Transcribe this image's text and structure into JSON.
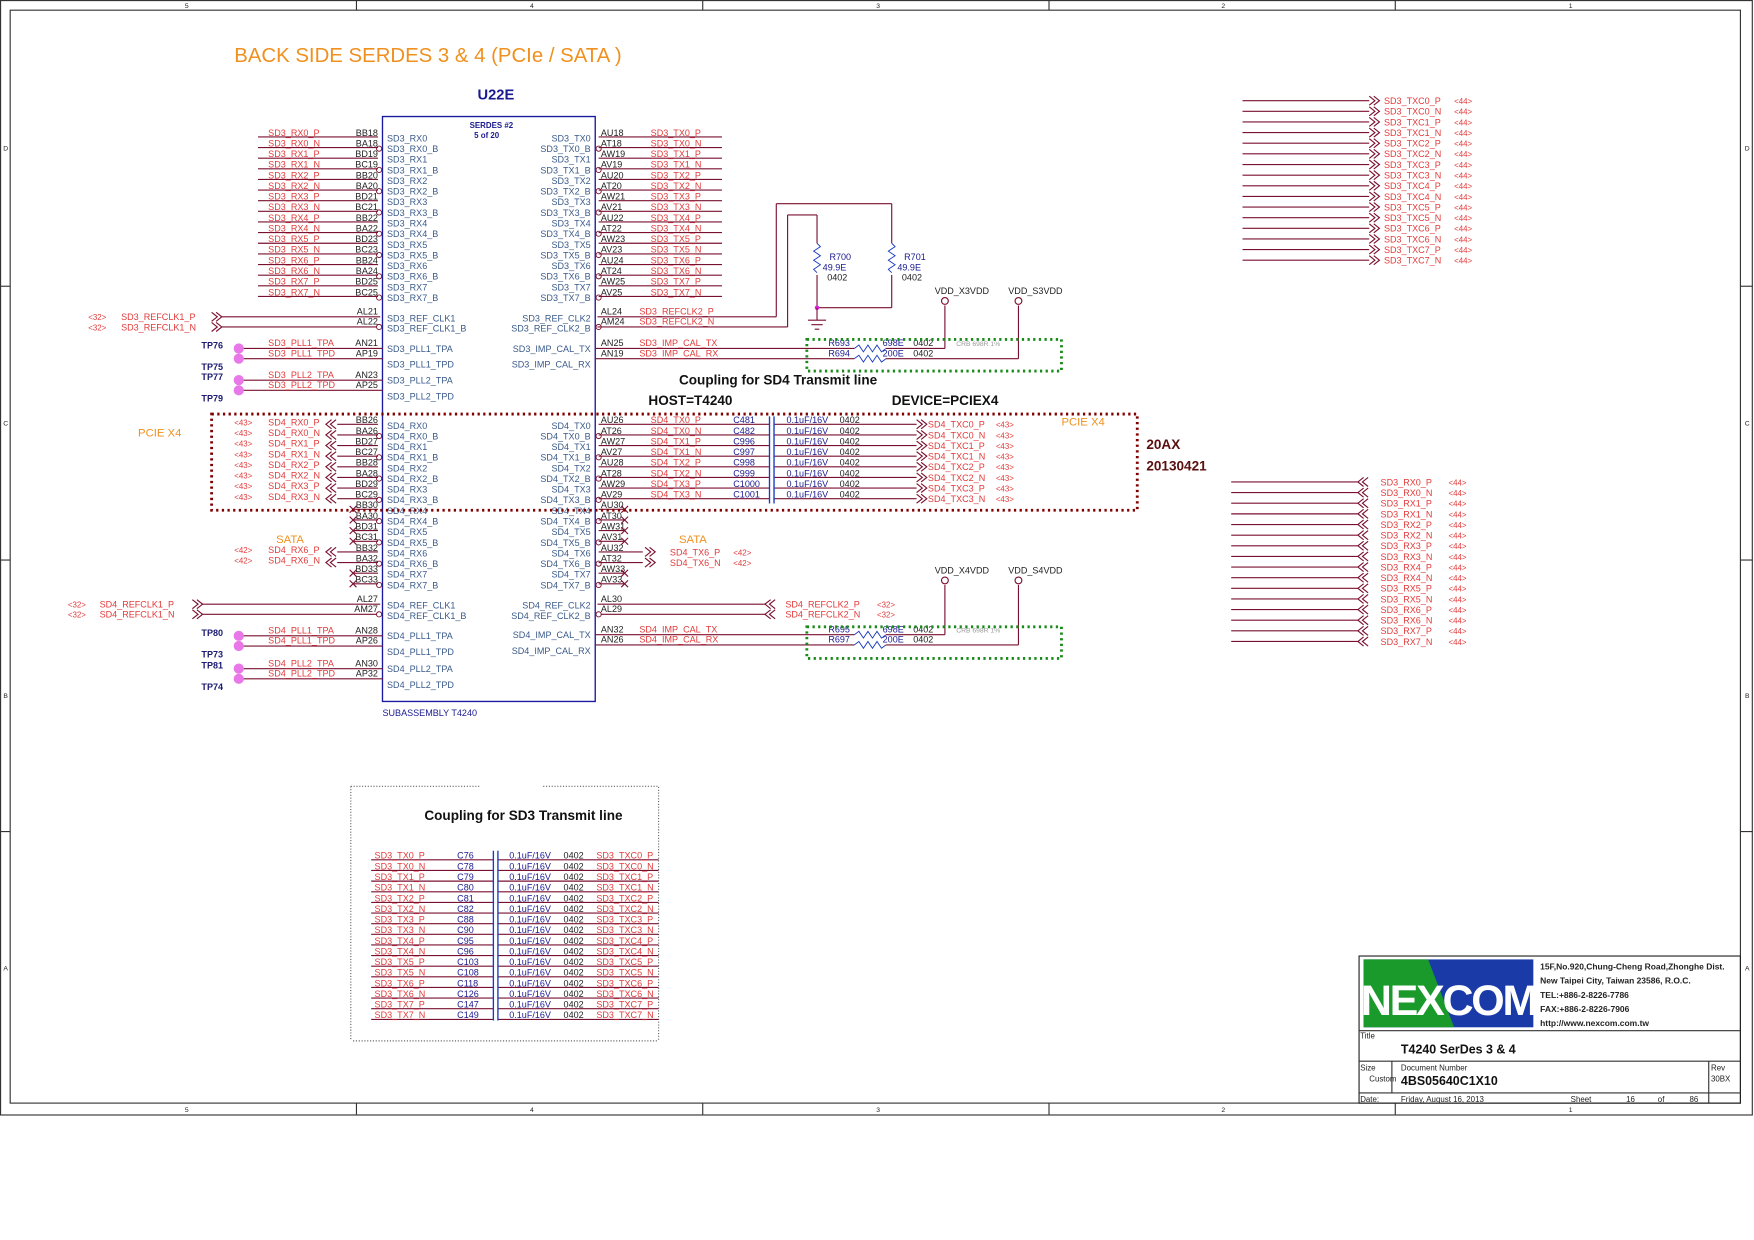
{
  "title": "BACK SIDE SERDES 3 & 4  (PCIe / SATA )",
  "frame": {
    "columns": [
      "5",
      "4",
      "3",
      "2",
      "1"
    ],
    "rows": [
      "D",
      "C",
      "B",
      "A"
    ]
  },
  "chip": {
    "ref": "U22E",
    "block": "SERDES #2",
    "part": "5 of 20",
    "subassembly": "SUBASSEMBLY T4240"
  },
  "sd3": {
    "left_pins": [
      "BB18",
      "BA18",
      "BD19",
      "BC19",
      "BB20",
      "BA20",
      "BD21",
      "BC21",
      "BB22",
      "BA22",
      "BD23",
      "BC23",
      "BB24",
      "BA24",
      "BD25",
      "BC25"
    ],
    "left_names": [
      "SD3_RX0",
      "SD3_RX0_B",
      "SD3_RX1",
      "SD3_RX1_B",
      "SD3_RX2",
      "SD3_RX2_B",
      "SD3_RX3",
      "SD3_RX3_B",
      "SD3_RX4",
      "SD3_RX4_B",
      "SD3_RX5",
      "SD3_RX5_B",
      "SD3_RX6",
      "SD3_RX6_B",
      "SD3_RX7",
      "SD3_RX7_B"
    ],
    "left_nets": [
      "SD3_RX0_P",
      "SD3_RX0_N",
      "SD3_RX1_P",
      "SD3_RX1_N",
      "SD3_RX2_P",
      "SD3_RX2_N",
      "SD3_RX3_P",
      "SD3_RX3_N",
      "SD3_RX4_P",
      "SD3_RX4_N",
      "SD3_RX5_P",
      "SD3_RX5_N",
      "SD3_RX6_P",
      "SD3_RX6_N",
      "SD3_RX7_P",
      "SD3_RX7_N"
    ],
    "right_pins": [
      "AU18",
      "AT18",
      "AW19",
      "AV19",
      "AU20",
      "AT20",
      "AW21",
      "AV21",
      "AU22",
      "AT22",
      "AW23",
      "AV23",
      "AU24",
      "AT24",
      "AW25",
      "AV25"
    ],
    "right_names": [
      "SD3_TX0",
      "SD3_TX0_B",
      "SD3_TX1",
      "SD3_TX1_B",
      "SD3_TX2",
      "SD3_TX2_B",
      "SD3_TX3",
      "SD3_TX3_B",
      "SD3_TX4",
      "SD3_TX4_B",
      "SD3_TX5",
      "SD3_TX5_B",
      "SD3_TX6",
      "SD3_TX6_B",
      "SD3_TX7",
      "SD3_TX7_B"
    ],
    "right_nets": [
      "SD3_TX0_P",
      "SD3_TX0_N",
      "SD3_TX1_P",
      "SD3_TX1_N",
      "SD3_TX2_P",
      "SD3_TX2_N",
      "SD3_TX3_P",
      "SD3_TX3_N",
      "SD3_TX4_P",
      "SD3_TX4_N",
      "SD3_TX5_P",
      "SD3_TX5_N",
      "SD3_TX6_P",
      "SD3_TX6_N",
      "SD3_TX7_P",
      "SD3_TX7_N"
    ],
    "refclk1": {
      "pins": [
        "AL21",
        "AL22"
      ],
      "names": [
        "SD3_REF_CLK1",
        "SD3_REF_CLK1_B"
      ],
      "nets": [
        "SD3_REFCLK1_P",
        "SD3_REFCLK1_N"
      ],
      "page": "<32>"
    },
    "refclk2": {
      "pins": [
        "AL24",
        "AM24"
      ],
      "names": [
        "SD3_REF_CLK2",
        "SD3_REF_CLK2_B"
      ],
      "nets": [
        "SD3_REFCLK2_P",
        "SD3_REFCLK2_N"
      ]
    },
    "pll": {
      "pins": [
        "AN21",
        "AP19",
        "AN23",
        "AP25"
      ],
      "names": [
        "SD3_PLL1_TPA",
        "SD3_PLL1_TPD",
        "SD3_PLL2_TPA",
        "SD3_PLL2_TPD"
      ],
      "nets": [
        "SD3_PLL1_TPA",
        "SD3_PLL1_TPD",
        "SD3_PLL2_TPA",
        "SD3_PLL2_TPD"
      ],
      "tps": [
        "TP76",
        "TP75",
        "TP77",
        "TP79"
      ]
    },
    "impcal": {
      "pins": [
        "AN25",
        "AN19"
      ],
      "names": [
        "SD3_IMP_CAL_TX",
        "SD3_IMP_CAL_RX"
      ],
      "nets": [
        "SD3_IMP_CAL_TX",
        "SD3_IMP_CAL_RX"
      ],
      "res": [
        {
          "ref": "R693",
          "val": "698E",
          "pkg": "0402"
        },
        {
          "ref": "R694",
          "val": "200E",
          "pkg": "0402"
        }
      ],
      "note": "CRB 698R 1%",
      "rails": [
        "VDD_X3VDD",
        "VDD_S3VDD"
      ]
    },
    "term": [
      {
        "ref": "R700",
        "val": "49.9E",
        "pkg": "0402"
      },
      {
        "ref": "R701",
        "val": "49.9E",
        "pkg": "0402"
      }
    ]
  },
  "sd4": {
    "left_pins": [
      "BB26",
      "BA26",
      "BD27",
      "BC27",
      "BB28",
      "BA28",
      "BD29",
      "BC29",
      "BB30",
      "BA30",
      "BD31",
      "BC31",
      "BB32",
      "BA32",
      "BD33",
      "BC33"
    ],
    "left_names": [
      "SD4_RX0",
      "SD4_RX0_B",
      "SD4_RX1",
      "SD4_RX1_B",
      "SD4_RX2",
      "SD4_RX2_B",
      "SD4_RX3",
      "SD4_RX3_B",
      "SD4_RX4",
      "SD4_RX4_B",
      "SD4_RX5",
      "SD4_RX5_B",
      "SD4_RX6",
      "SD4_RX6_B",
      "SD4_RX7",
      "SD4_RX7_B"
    ],
    "left_nets": [
      "SD4_RX0_P",
      "SD4_RX0_N",
      "SD4_RX1_P",
      "SD4_RX1_N",
      "SD4_RX2_P",
      "SD4_RX2_N",
      "SD4_RX3_P",
      "SD4_RX3_N",
      "",
      "",
      "",
      "",
      "SD4_RX6_P",
      "SD4_RX6_N",
      "",
      ""
    ],
    "left_pages": [
      "<43>",
      "<43>",
      "<43>",
      "<43>",
      "<43>",
      "<43>",
      "<43>",
      "<43>",
      "",
      "",
      "",
      "",
      "<42>",
      "<42>",
      "",
      ""
    ],
    "right_pins": [
      "AU26",
      "AT26",
      "AW27",
      "AV27",
      "AU28",
      "AT28",
      "AW29",
      "AV29",
      "AU30",
      "AT30",
      "AW31",
      "AV31",
      "AU32",
      "AT32",
      "AW33",
      "AV33"
    ],
    "right_names": [
      "SD4_TX0",
      "SD4_TX0_B",
      "SD4_TX1",
      "SD4_TX1_B",
      "SD4_TX2",
      "SD4_TX2_B",
      "SD4_TX3",
      "SD4_TX3_B",
      "SD4_TX4",
      "SD4_TX4_B",
      "SD4_TX5",
      "SD4_TX5_B",
      "SD4_TX6",
      "SD4_TX6_B",
      "SD4_TX7",
      "SD4_TX7_B"
    ],
    "right_nets": [
      "SD4_TX0_P",
      "SD4_TX0_N",
      "SD4_TX1_P",
      "SD4_TX1_N",
      "SD4_TX2_P",
      "SD4_TX2_N",
      "SD4_TX3_P",
      "SD4_TX3_N"
    ],
    "caps": [
      "C481",
      "C482",
      "C996",
      "C997",
      "C998",
      "C999",
      "C1000",
      "C1001"
    ],
    "cap_value": "0.1uF/16V",
    "cap_pkg": "0402",
    "cap_out_nets": [
      "SD4_TXC0_P",
      "SD4_TXC0_N",
      "SD4_TXC1_P",
      "SD4_TXC1_N",
      "SD4_TXC2_P",
      "SD4_TXC2_N",
      "SD4_TXC3_P",
      "SD4_TXC3_N"
    ],
    "cap_out_page": "<43>",
    "sata_tx": {
      "nets": [
        "SD4_TX6_P",
        "SD4_TX6_N"
      ],
      "page": "<42>"
    },
    "refclk1": {
      "pins": [
        "AL27",
        "AM27"
      ],
      "names": [
        "SD4_REF_CLK1",
        "SD4_REF_CLK1_B"
      ],
      "nets": [
        "SD4_REFCLK1_P",
        "SD4_REFCLK1_N"
      ],
      "page": "<32>"
    },
    "refclk2": {
      "pins": [
        "AL30",
        "AL29"
      ],
      "names": [
        "SD4_REF_CLK2",
        "SD4_REF_CLK2_B"
      ],
      "nets": [
        "SD4_REFCLK2_P",
        "SD4_REFCLK2_N"
      ],
      "page": "<32>"
    },
    "pll": {
      "pins": [
        "AN28",
        "AP26",
        "AN30",
        "AP32"
      ],
      "names": [
        "SD4_PLL1_TPA",
        "SD4_PLL1_TPD",
        "SD4_PLL2_TPA",
        "SD4_PLL2_TPD"
      ],
      "nets": [
        "SD4_PLL1_TPA",
        "SD4_PLL1_TPD",
        "SD4_PLL2_TPA",
        "SD4_PLL2_TPD"
      ],
      "tps": [
        "TP80",
        "TP73",
        "TP81",
        "TP74"
      ]
    },
    "impcal": {
      "pins": [
        "AN32",
        "AN26"
      ],
      "names": [
        "SD4_IMP_CAL_TX",
        "SD4_IMP_CAL_RX"
      ],
      "nets": [
        "SD4_IMP_CAL_TX",
        "SD4_IMP_CAL_RX"
      ],
      "res": [
        {
          "ref": "R695",
          "val": "698E",
          "pkg": "0402"
        },
        {
          "ref": "R697",
          "val": "200E",
          "pkg": "0402"
        }
      ],
      "note": "CRB 698R 1%",
      "rails": [
        "VDD_X4VDD",
        "VDD_S4VDD"
      ]
    }
  },
  "labels": {
    "pcie_left": "PCIE X4",
    "pcie_right": "PCIE X4",
    "sata_left": "SATA",
    "sata_right": "SATA",
    "coupling_sd4": "Coupling for SD4 Transmit line",
    "host": "HOST=T4240",
    "device": "DEVICE=PCIEX4",
    "rev_note": "20AX",
    "rev_date": "20130421",
    "coupling_sd3": "Coupling for SD3 Transmit line"
  },
  "sd3_coupling": {
    "in_nets": [
      "SD3_TX0_P",
      "SD3_TX0_N",
      "SD3_TX1_P",
      "SD3_TX1_N",
      "SD3_TX2_P",
      "SD3_TX2_N",
      "SD3_TX3_P",
      "SD3_TX3_N",
      "SD3_TX4_P",
      "SD3_TX4_N",
      "SD3_TX5_P",
      "SD3_TX5_N",
      "SD3_TX6_P",
      "SD3_TX6_N",
      "SD3_TX7_P",
      "SD3_TX7_N"
    ],
    "caps": [
      "C76",
      "C78",
      "C79",
      "C80",
      "C81",
      "C82",
      "C88",
      "C90",
      "C95",
      "C96",
      "C103",
      "C108",
      "C118",
      "C126",
      "C147",
      "C149"
    ],
    "value": "0.1uF/16V",
    "pkg": "0402",
    "out_nets": [
      "SD3_TXC0_P",
      "SD3_TXC0_N",
      "SD3_TXC1_P",
      "SD3_TXC1_N",
      "SD3_TXC2_P",
      "SD3_TXC2_N",
      "SD3_TXC3_P",
      "SD3_TXC3_N",
      "SD3_TXC4_P",
      "SD3_TXC4_N",
      "SD3_TXC5_P",
      "SD3_TXC5_N",
      "SD3_TXC6_P",
      "SD3_TXC6_N",
      "SD3_TXC7_P",
      "SD3_TXC7_N"
    ]
  },
  "offpage_txc": {
    "nets": [
      "SD3_TXC0_P",
      "SD3_TXC0_N",
      "SD3_TXC1_P",
      "SD3_TXC1_N",
      "SD3_TXC2_P",
      "SD3_TXC2_N",
      "SD3_TXC3_P",
      "SD3_TXC3_N",
      "SD3_TXC4_P",
      "SD3_TXC4_N",
      "SD3_TXC5_P",
      "SD3_TXC5_N",
      "SD3_TXC6_P",
      "SD3_TXC6_N",
      "SD3_TXC7_P",
      "SD3_TXC7_N"
    ],
    "page": "<44>"
  },
  "offpage_rx": {
    "nets": [
      "SD3_RX0_P",
      "SD3_RX0_N",
      "SD3_RX1_P",
      "SD3_RX1_N",
      "SD3_RX2_P",
      "SD3_RX2_N",
      "SD3_RX3_P",
      "SD3_RX3_N",
      "SD3_RX4_P",
      "SD3_RX4_N",
      "SD3_RX5_P",
      "SD3_RX5_N",
      "SD3_RX6_P",
      "SD3_RX6_N",
      "SD3_RX7_P",
      "SD3_RX7_N"
    ],
    "page": "<44>"
  },
  "titleblock": {
    "logo": "NEXCOM",
    "address": [
      "15F,No.920,Chung-Cheng Road,Zhonghe Dist.",
      "New Taipei City, Taiwan 23586, R.O.C.",
      "TEL:+886-2-8226-7786",
      "FAX:+886-2-8226-7906",
      "http://www.nexcom.com.tw"
    ],
    "title_label": "Title",
    "title": "T4240 SerDes 3 & 4",
    "size_label": "Size",
    "size": "Custom",
    "docnum_label": "Document Number",
    "docnum": "4BS05640C1X10",
    "rev_label": "Rev",
    "rev": "30BX",
    "date_label": "Date:",
    "date": "Friday, August 16, 2013",
    "sheet_label": "Sheet",
    "sheet": "16",
    "of_label": "of",
    "total": "86"
  },
  "colors": {
    "net": "#e23a3a",
    "wire": "#7a1030",
    "chip": "#1a1aa0",
    "accent": "#f0901e",
    "pcie_box": "#800000",
    "cal_box": "#1a8a1a",
    "logo_green": "#1a9a2a",
    "logo_blue": "#1a3aa8"
  }
}
